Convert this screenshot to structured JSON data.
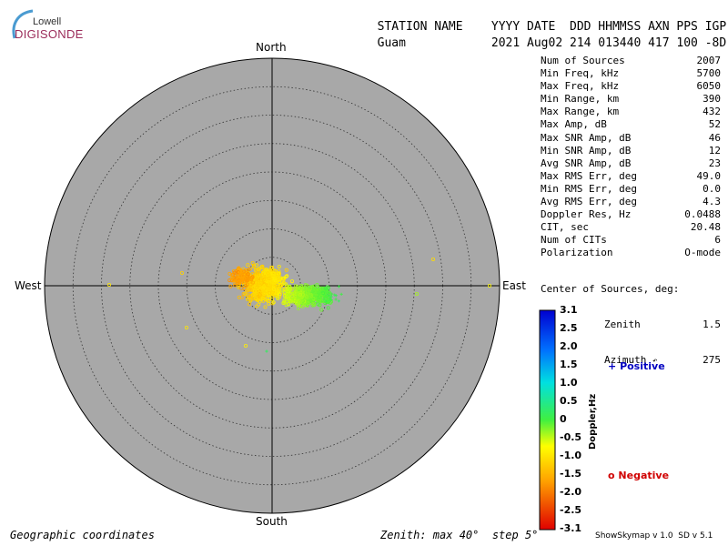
{
  "logo": {
    "top": "Lowell",
    "main": "DIGISONDE"
  },
  "header": {
    "labels": [
      "STATION NAME",
      "YYYY DATE",
      "DDD HHMMSS AXN PPS IGP"
    ],
    "values": [
      "Guam",
      "2021 Aug02",
      "214 013440 417 100 -8D"
    ]
  },
  "directions": {
    "north": "North",
    "south": "South",
    "east": "East",
    "west": "West"
  },
  "stats": [
    {
      "label": "Num of Sources",
      "value": "2007"
    },
    {
      "label": "Min Freq, kHz",
      "value": "5700"
    },
    {
      "label": "Max Freq, kHz",
      "value": "6050"
    },
    {
      "label": "Min Range, km",
      "value": "390"
    },
    {
      "label": "Max Range, km",
      "value": "432"
    },
    {
      "label": "Max Amp, dB",
      "value": "52"
    },
    {
      "label": "Max SNR Amp, dB",
      "value": "46"
    },
    {
      "label": "Min SNR Amp, dB",
      "value": "12"
    },
    {
      "label": "Avg SNR Amp, dB",
      "value": "23"
    },
    {
      "label": "Max RMS Err, deg",
      "value": "49.0"
    },
    {
      "label": "Min RMS Err, deg",
      "value": "0.0"
    },
    {
      "label": "Avg RMS Err, deg",
      "value": "4.3"
    },
    {
      "label": "Doppler Res, Hz",
      "value": "0.0488"
    },
    {
      "label": "CIT, sec",
      "value": "20.48"
    },
    {
      "label": "Num of CITs",
      "value": "6"
    },
    {
      "label": "Polarization",
      "value": "O-mode"
    }
  ],
  "center": {
    "title": "Center of Sources, deg:",
    "zenith_label": "Zenith",
    "zenith_value": "1.5",
    "azimuth_label": "Azimuth",
    "azimuth_value": "275"
  },
  "colorbar": {
    "label": "Doppler,Hz",
    "ticks": [
      "3.1",
      "2.5",
      "2.0",
      "1.5",
      "1.0",
      "0.5",
      "0",
      "-0.5",
      "-1.0",
      "-1.5",
      "-2.0",
      "-2.5",
      "-3.1"
    ],
    "min": -3.1,
    "max": 3.1
  },
  "legend": {
    "positive_symbol": "+",
    "positive": "Positive",
    "negative_symbol": "o",
    "negative": "Negative"
  },
  "footer": {
    "left": "Geographic coordinates",
    "center": "Zenith: max 40°  step 5°",
    "version": "ShowSkymap v 1.0  SD v 5.1"
  },
  "skymap": {
    "zenith_max_deg": 40,
    "ring_step_deg": 5,
    "background": "#a8a8a8"
  }
}
